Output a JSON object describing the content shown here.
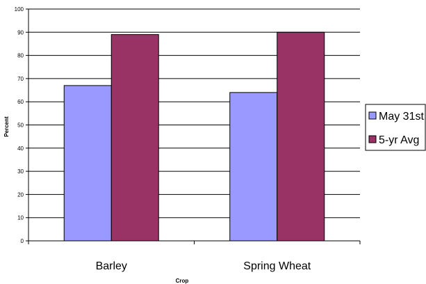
{
  "chart_data": {
    "type": "bar",
    "categories": [
      "Barley",
      "Spring Wheat"
    ],
    "series": [
      {
        "name": "May 31st",
        "values": [
          67,
          64
        ],
        "color": "#9999ff"
      },
      {
        "name": "5-yr Avg",
        "values": [
          89,
          90
        ],
        "color": "#993366"
      }
    ],
    "xlabel": "Crop",
    "ylabel": "Percent",
    "ylim": [
      0,
      100
    ],
    "yticks": [
      0,
      10,
      20,
      30,
      40,
      50,
      60,
      70,
      80,
      90,
      100
    ],
    "grid": true,
    "legend_position": "right"
  }
}
